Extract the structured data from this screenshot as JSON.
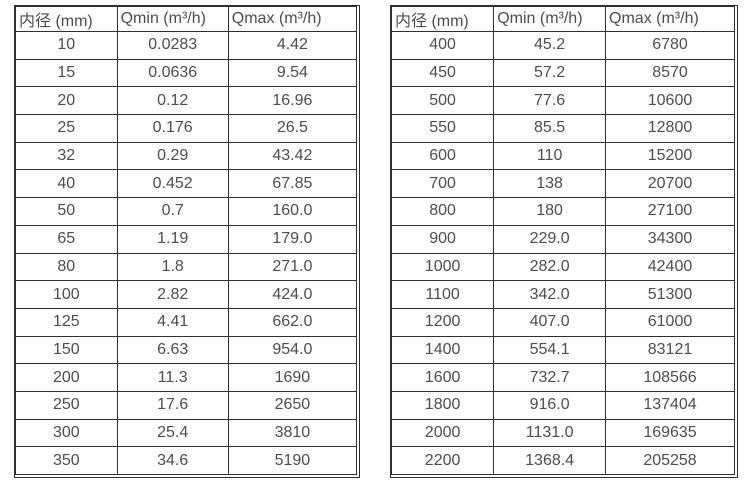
{
  "page": {
    "background": "#ffffff"
  },
  "colors": {
    "text": "#4d4d4d",
    "border": "#2f2f2f"
  },
  "tables": [
    {
      "name": "flow-table-small-diameters",
      "headers": [
        "内径 (mm)",
        "Qmin (m³/h)",
        "Qmax (m³/h)"
      ],
      "rows": [
        [
          "10",
          "0.0283",
          "4.42"
        ],
        [
          "15",
          "0.0636",
          "9.54"
        ],
        [
          "20",
          "0.12",
          "16.96"
        ],
        [
          "25",
          "0.176",
          "26.5"
        ],
        [
          "32",
          "0.29",
          "43.42"
        ],
        [
          "40",
          "0.452",
          "67.85"
        ],
        [
          "50",
          "0.7",
          "160.0"
        ],
        [
          "65",
          "1.19",
          "179.0"
        ],
        [
          "80",
          "1.8",
          "271.0"
        ],
        [
          "100",
          "2.82",
          "424.0"
        ],
        [
          "125",
          "4.41",
          "662.0"
        ],
        [
          "150",
          "6.63",
          "954.0"
        ],
        [
          "200",
          "11.3",
          "1690"
        ],
        [
          "250",
          "17.6",
          "2650"
        ],
        [
          "300",
          "25.4",
          "3810"
        ],
        [
          "350",
          "34.6",
          "5190"
        ]
      ]
    },
    {
      "name": "flow-table-large-diameters",
      "headers": [
        "内径 (mm)",
        "Qmin (m³/h)",
        "Qmax (m³/h)"
      ],
      "rows": [
        [
          "400",
          "45.2",
          "6780"
        ],
        [
          "450",
          "57.2",
          "8570"
        ],
        [
          "500",
          "77.6",
          "10600"
        ],
        [
          "550",
          "85.5",
          "12800"
        ],
        [
          "600",
          "110",
          "15200"
        ],
        [
          "700",
          "138",
          "20700"
        ],
        [
          "800",
          "180",
          "27100"
        ],
        [
          "900",
          "229.0",
          "34300"
        ],
        [
          "1000",
          "282.0",
          "42400"
        ],
        [
          "1100",
          "342.0",
          "51300"
        ],
        [
          "1200",
          "407.0",
          "61000"
        ],
        [
          "1400",
          "554.1",
          "83121"
        ],
        [
          "1600",
          "732.7",
          "108566"
        ],
        [
          "1800",
          "916.0",
          "137404"
        ],
        [
          "2000",
          "1131.0",
          "169635"
        ],
        [
          "2200",
          "1368.4",
          "205258"
        ]
      ]
    }
  ]
}
